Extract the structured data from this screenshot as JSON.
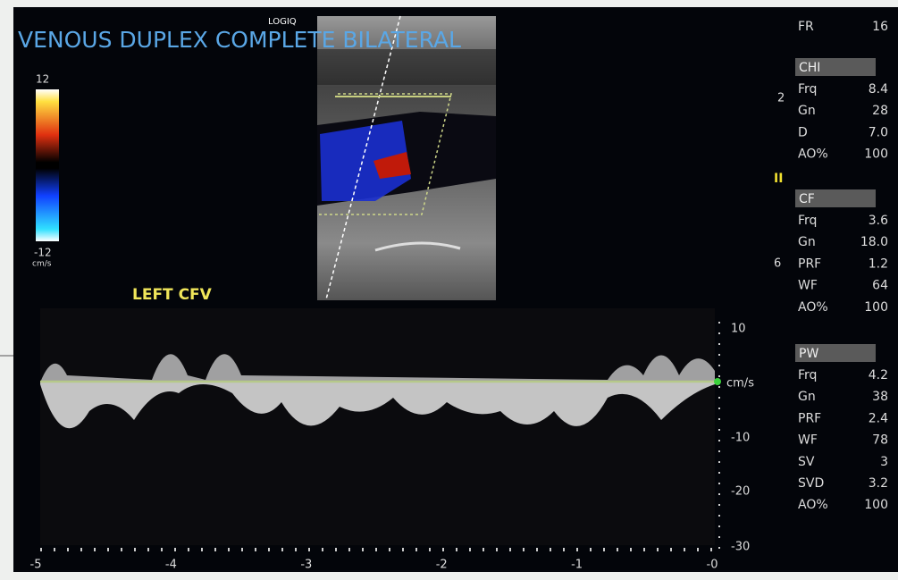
{
  "title": "VENOUS DUPLEX COMPLETE BILATERAL",
  "probe": "LOGIQ",
  "color_scale": {
    "max": "12",
    "min": "-12",
    "unit": "cm/s"
  },
  "depth_marks": [
    "2",
    "6"
  ],
  "frame_rate": {
    "label": "FR",
    "value": "16"
  },
  "sections": [
    {
      "name": "CHI",
      "rows": [
        [
          "Frq",
          "8.4"
        ],
        [
          "Gn",
          "28"
        ],
        [
          "D",
          "7.0"
        ],
        [
          "AO%",
          "100"
        ]
      ]
    },
    {
      "name": "CF",
      "rows": [
        [
          "Frq",
          "3.6"
        ],
        [
          "Gn",
          "18.0"
        ],
        [
          "PRF",
          "1.2"
        ],
        [
          "WF",
          "64"
        ],
        [
          "AO%",
          "100"
        ]
      ]
    },
    {
      "name": "PW",
      "rows": [
        [
          "Frq",
          "4.2"
        ],
        [
          "Gn",
          "38"
        ],
        [
          "PRF",
          "2.4"
        ],
        [
          "WF",
          "78"
        ],
        [
          "SV",
          "3"
        ],
        [
          "SVD",
          "3.2"
        ],
        [
          "AO%",
          "100"
        ]
      ]
    }
  ],
  "spectral": {
    "label": "LEFT CFV",
    "unit": "cm/s",
    "velocity_labels": [
      "10",
      "-10",
      "-20",
      "-30"
    ],
    "time_labels": [
      "-5",
      "-4",
      "-3",
      "-2",
      "-1",
      "-0"
    ]
  }
}
